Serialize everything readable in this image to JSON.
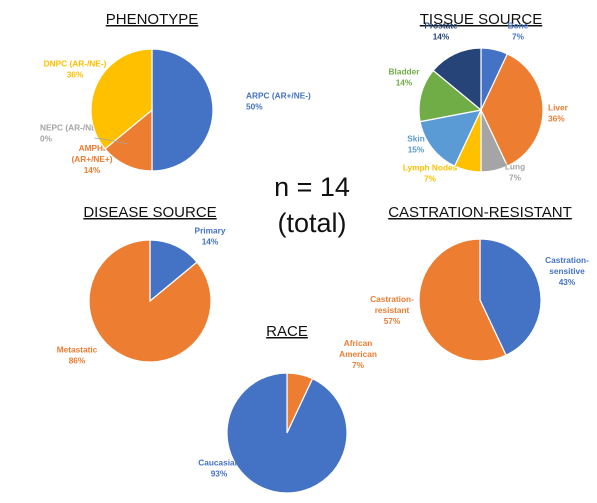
{
  "center_text": {
    "line1": "n = 14",
    "line2": "(total)"
  },
  "chart_data": [
    {
      "id": "phenotype",
      "type": "pie",
      "title": "PHENOTYPE",
      "slices": [
        {
          "label": [
            "ARPC (AR+/NE-)",
            "50%"
          ],
          "value": 50,
          "color": "#4472C4",
          "label_color": "#4472C4"
        },
        {
          "label": [
            "NEPC (AR-/NE+)",
            "0%"
          ],
          "value": 0,
          "color": "#A5A5A5",
          "label_color": "#A5A5A5"
        },
        {
          "label": [
            "AMPHI",
            "(AR+/NE+)",
            "14%"
          ],
          "value": 14,
          "color": "#ED7D31",
          "label_color": "#ED7D31"
        },
        {
          "label": [
            "DNPC (AR-/NE-)",
            "36%"
          ],
          "value": 36,
          "color": "#FFC000",
          "label_color": "#FFC000"
        }
      ]
    },
    {
      "id": "tissue-source",
      "type": "pie",
      "title": "TISSUE SOURCE",
      "slices": [
        {
          "label": [
            "Bone",
            "7%"
          ],
          "value": 7,
          "color": "#4472C4",
          "label_color": "#4472C4"
        },
        {
          "label": [
            "Liver",
            "36%"
          ],
          "value": 36,
          "color": "#ED7D31",
          "label_color": "#ED7D31"
        },
        {
          "label": [
            "Lung",
            "7%"
          ],
          "value": 7,
          "color": "#A5A5A5",
          "label_color": "#A5A5A5"
        },
        {
          "label": [
            "Lymph Nodes",
            "7%"
          ],
          "value": 7,
          "color": "#FFC000",
          "label_color": "#FFC000"
        },
        {
          "label": [
            "Skin",
            "15%"
          ],
          "value": 15,
          "color": "#5B9BD5",
          "label_color": "#5B9BD5"
        },
        {
          "label": [
            "Bladder",
            "14%"
          ],
          "value": 14,
          "color": "#70AD47",
          "label_color": "#70AD47"
        },
        {
          "label": [
            "Prostate",
            "14%"
          ],
          "value": 14,
          "color": "#264478",
          "label_color": "#264478"
        }
      ]
    },
    {
      "id": "disease-source",
      "type": "pie",
      "title": "DISEASE SOURCE",
      "slices": [
        {
          "label": [
            "Primary",
            "14%"
          ],
          "value": 14,
          "color": "#4472C4",
          "label_color": "#4472C4"
        },
        {
          "label": [
            "Metastatic",
            "86%"
          ],
          "value": 86,
          "color": "#ED7D31",
          "label_color": "#ED7D31"
        }
      ]
    },
    {
      "id": "castration-resistant",
      "type": "pie",
      "title": "CASTRATION-RESISTANT",
      "slices": [
        {
          "label": [
            "Castration-",
            "sensitive",
            "43%"
          ],
          "value": 43,
          "color": "#4472C4",
          "label_color": "#4472C4"
        },
        {
          "label": [
            "Castration-",
            "resistant",
            "57%"
          ],
          "value": 57,
          "color": "#ED7D31",
          "label_color": "#ED7D31"
        }
      ]
    },
    {
      "id": "race",
      "type": "pie",
      "title": "RACE",
      "slices": [
        {
          "label": [
            "African",
            "American",
            "7%"
          ],
          "value": 7,
          "color": "#ED7D31",
          "label_color": "#ED7D31"
        },
        {
          "label": [
            "Caucasian",
            "93%"
          ],
          "value": 93,
          "color": "#4472C4",
          "label_color": "#4472C4"
        }
      ]
    }
  ]
}
